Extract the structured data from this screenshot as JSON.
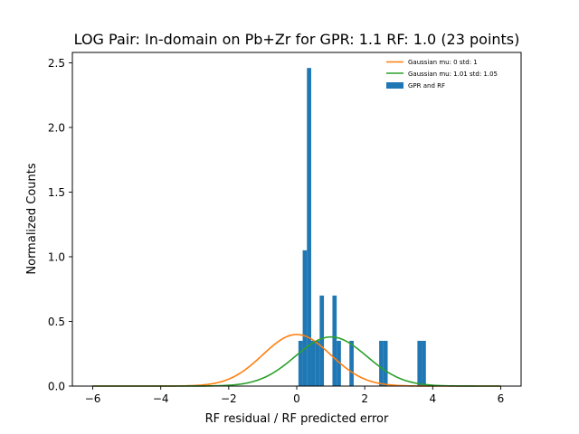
{
  "chart_data": {
    "type": "bar",
    "title": "LOG Pair: In-domain on Pb+Zr for GPR: 1.1 RF: 1.0 (23 points)",
    "xlabel": "RF residual / RF predicted error",
    "ylabel": "Normalized Counts",
    "xlim": [
      -6.6,
      6.6
    ],
    "ylim": [
      0,
      2.58
    ],
    "xticks": [
      -6,
      -4,
      -2,
      0,
      2,
      4,
      6
    ],
    "xtick_labels": [
      "−6",
      "−4",
      "−2",
      "0",
      "2",
      "4",
      "6"
    ],
    "yticks": [
      0.0,
      0.5,
      1.0,
      1.5,
      2.0,
      2.5
    ],
    "ytick_labels": [
      "0.0",
      "0.5",
      "1.0",
      "1.5",
      "2.0",
      "2.5"
    ],
    "grid": false,
    "legend_position": "top-right",
    "histogram": {
      "name": "GPR and RF",
      "color": "#1f77b4",
      "bin_width": 0.125,
      "bins": [
        {
          "x0": 0.05,
          "value": 0.35
        },
        {
          "x0": 0.175,
          "value": 1.05
        },
        {
          "x0": 0.3,
          "value": 2.46
        },
        {
          "x0": 0.425,
          "value": 0.35
        },
        {
          "x0": 0.55,
          "value": 0.35
        },
        {
          "x0": 0.675,
          "value": 0.7
        },
        {
          "x0": 1.05,
          "value": 0.7
        },
        {
          "x0": 1.175,
          "value": 0.35
        },
        {
          "x0": 1.55,
          "value": 0.35
        },
        {
          "x0": 2.425,
          "value": 0.35
        },
        {
          "x0": 2.55,
          "value": 0.35
        },
        {
          "x0": 3.55,
          "value": 0.35
        },
        {
          "x0": 3.675,
          "value": 0.35
        }
      ]
    },
    "curves": [
      {
        "name": "Gaussian mu: 0 std: 1",
        "color": "#ff7f0e",
        "mu": 0,
        "std": 1,
        "x_range": [
          -6,
          6
        ]
      },
      {
        "name": "Gaussian mu: 1.01 std: 1.05",
        "color": "#2ca02c",
        "mu": 1.01,
        "std": 1.05,
        "x_range": [
          -6,
          6
        ]
      }
    ]
  }
}
